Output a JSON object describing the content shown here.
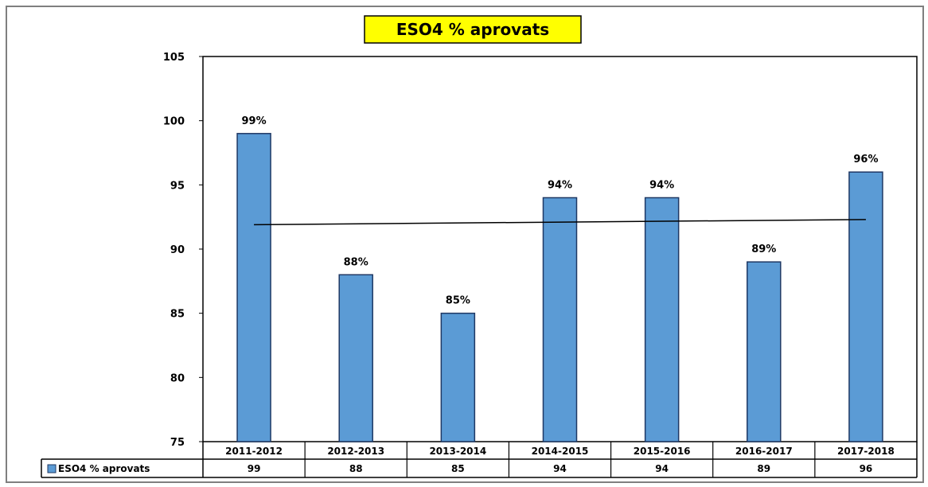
{
  "chart_data": {
    "type": "bar",
    "title": "ESO4 % aprovats",
    "categories": [
      "2011-2012",
      "2012-2013",
      "2013-2014",
      "2014-2015",
      "2015-2016",
      "2016-2017",
      "2017-2018"
    ],
    "series": [
      {
        "name": "ESO4 % aprovats",
        "values": [
          99,
          88,
          85,
          94,
          94,
          89,
          96
        ],
        "data_labels": [
          "99%",
          "88%",
          "85%",
          "94%",
          "94%",
          "89%",
          "96%"
        ]
      }
    ],
    "ylim": [
      75,
      105
    ],
    "yticks": [
      "105",
      "100",
      "95",
      "90",
      "85",
      "80",
      "75"
    ],
    "trendline": {
      "type": "linear",
      "start": 91.9,
      "end": 92.3
    },
    "data_table": true,
    "grid": false,
    "colors": {
      "bar": "#5b9bd5",
      "bar_border": "#1f3864",
      "title_bg": "#ffff00"
    }
  }
}
